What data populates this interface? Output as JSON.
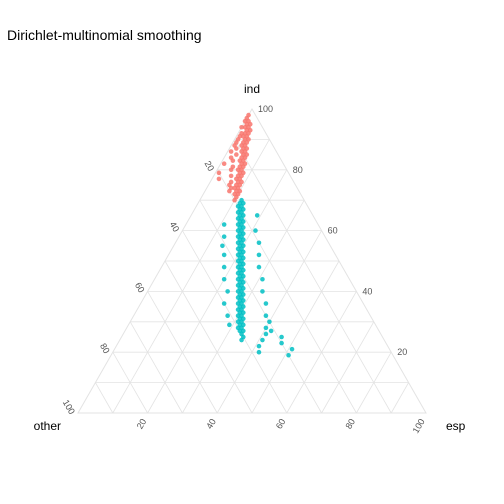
{
  "title": "Dirichlet-multinomial smoothing",
  "chart_data": {
    "type": "scatter",
    "subtype": "ternary",
    "title": "Dirichlet-multinomial smoothing",
    "vertices": {
      "top": "ind",
      "left": "other",
      "right": "esp"
    },
    "ind_ticks": [
      "20",
      "40",
      "60",
      "80",
      "100"
    ],
    "other_ticks": [
      "20",
      "40",
      "60",
      "80",
      "100"
    ],
    "esp_ticks": [
      "20",
      "40",
      "60",
      "80",
      "100"
    ],
    "grid": true,
    "legend": "none",
    "series": [
      {
        "color": "#f8766d",
        "points": [
          [
            98,
            2,
            0
          ],
          [
            97,
            3,
            0
          ],
          [
            96,
            3,
            1
          ],
          [
            95,
            4,
            1
          ],
          [
            95,
            3,
            2
          ],
          [
            94,
            4,
            2
          ],
          [
            94,
            5,
            1
          ],
          [
            93,
            5,
            2
          ],
          [
            93,
            4,
            3
          ],
          [
            92,
            6,
            2
          ],
          [
            92,
            5,
            3
          ],
          [
            91,
            6,
            3
          ],
          [
            91,
            7,
            2
          ],
          [
            90,
            7,
            3
          ],
          [
            90,
            6,
            4
          ],
          [
            89,
            8,
            3
          ],
          [
            89,
            7,
            4
          ],
          [
            88,
            8,
            4
          ],
          [
            88,
            9,
            3
          ],
          [
            87,
            9,
            4
          ],
          [
            87,
            8,
            5
          ],
          [
            86,
            9,
            5
          ],
          [
            86,
            10,
            4
          ],
          [
            85,
            10,
            5
          ],
          [
            85,
            9,
            6
          ],
          [
            84,
            11,
            5
          ],
          [
            84,
            10,
            6
          ],
          [
            83,
            11,
            6
          ],
          [
            83,
            12,
            5
          ],
          [
            82,
            12,
            6
          ],
          [
            82,
            11,
            7
          ],
          [
            81,
            13,
            6
          ],
          [
            81,
            12,
            7
          ],
          [
            80,
            13,
            7
          ],
          [
            80,
            14,
            6
          ],
          [
            79,
            14,
            7
          ],
          [
            79,
            13,
            8
          ],
          [
            78,
            15,
            7
          ],
          [
            78,
            14,
            8
          ],
          [
            77,
            15,
            8
          ],
          [
            77,
            16,
            7
          ],
          [
            76,
            16,
            8
          ],
          [
            76,
            15,
            9
          ],
          [
            75,
            17,
            8
          ],
          [
            75,
            16,
            9
          ],
          [
            74,
            17,
            9
          ],
          [
            74,
            18,
            8
          ],
          [
            73,
            18,
            9
          ],
          [
            73,
            17,
            10
          ],
          [
            72,
            19,
            9
          ],
          [
            72,
            18,
            10
          ],
          [
            71,
            19,
            10
          ],
          [
            70,
            20,
            10
          ],
          [
            86,
            13,
            1
          ],
          [
            82,
            17,
            1
          ],
          [
            79,
            20,
            1
          ],
          [
            88,
            11,
            1
          ],
          [
            84,
            14,
            2
          ],
          [
            77,
            21,
            2
          ],
          [
            94,
            6,
            0
          ],
          [
            90,
            9,
            1
          ],
          [
            96,
            4,
            0
          ],
          [
            91,
            8,
            1
          ],
          [
            89,
            10,
            1
          ],
          [
            85,
            12,
            3
          ],
          [
            83,
            14,
            3
          ],
          [
            80,
            16,
            4
          ],
          [
            78,
            17,
            5
          ],
          [
            76,
            18,
            6
          ],
          [
            74,
            19,
            7
          ],
          [
            92,
            7,
            1
          ],
          [
            87,
            11,
            2
          ],
          [
            81,
            15,
            4
          ],
          [
            75,
            19,
            6
          ],
          [
            73,
            20,
            7
          ]
        ]
      },
      {
        "color": "#00bfc4",
        "points": [
          [
            70,
            18,
            12
          ],
          [
            69,
            19,
            12
          ],
          [
            69,
            18,
            13
          ],
          [
            68,
            20,
            12
          ],
          [
            68,
            19,
            13
          ],
          [
            67,
            20,
            13
          ],
          [
            67,
            19,
            14
          ],
          [
            66,
            21,
            13
          ],
          [
            66,
            20,
            14
          ],
          [
            65,
            21,
            14
          ],
          [
            65,
            20,
            15
          ],
          [
            64,
            22,
            14
          ],
          [
            64,
            21,
            15
          ],
          [
            63,
            22,
            15
          ],
          [
            63,
            21,
            16
          ],
          [
            62,
            23,
            15
          ],
          [
            62,
            22,
            16
          ],
          [
            61,
            23,
            16
          ],
          [
            61,
            22,
            17
          ],
          [
            60,
            24,
            16
          ],
          [
            60,
            23,
            17
          ],
          [
            59,
            24,
            17
          ],
          [
            59,
            23,
            18
          ],
          [
            58,
            25,
            17
          ],
          [
            58,
            24,
            18
          ],
          [
            57,
            25,
            18
          ],
          [
            57,
            24,
            19
          ],
          [
            56,
            26,
            18
          ],
          [
            56,
            25,
            19
          ],
          [
            55,
            26,
            19
          ],
          [
            55,
            25,
            20
          ],
          [
            54,
            27,
            19
          ],
          [
            54,
            26,
            20
          ],
          [
            53,
            27,
            20
          ],
          [
            53,
            26,
            21
          ],
          [
            52,
            28,
            20
          ],
          [
            52,
            27,
            21
          ],
          [
            51,
            28,
            21
          ],
          [
            51,
            27,
            22
          ],
          [
            50,
            29,
            21
          ],
          [
            50,
            28,
            22
          ],
          [
            49,
            29,
            22
          ],
          [
            49,
            28,
            23
          ],
          [
            48,
            30,
            22
          ],
          [
            48,
            29,
            23
          ],
          [
            47,
            30,
            23
          ],
          [
            47,
            29,
            24
          ],
          [
            46,
            31,
            23
          ],
          [
            46,
            30,
            24
          ],
          [
            45,
            31,
            24
          ],
          [
            45,
            30,
            25
          ],
          [
            44,
            32,
            24
          ],
          [
            44,
            31,
            25
          ],
          [
            43,
            32,
            25
          ],
          [
            43,
            31,
            26
          ],
          [
            42,
            33,
            25
          ],
          [
            42,
            32,
            26
          ],
          [
            41,
            33,
            26
          ],
          [
            41,
            32,
            27
          ],
          [
            40,
            34,
            26
          ],
          [
            40,
            33,
            27
          ],
          [
            39,
            34,
            27
          ],
          [
            39,
            33,
            28
          ],
          [
            38,
            35,
            27
          ],
          [
            38,
            34,
            28
          ],
          [
            37,
            35,
            28
          ],
          [
            37,
            34,
            29
          ],
          [
            36,
            36,
            28
          ],
          [
            36,
            35,
            29
          ],
          [
            35,
            36,
            29
          ],
          [
            35,
            35,
            30
          ],
          [
            34,
            37,
            29
          ],
          [
            34,
            36,
            30
          ],
          [
            33,
            37,
            30
          ],
          [
            33,
            36,
            31
          ],
          [
            32,
            38,
            30
          ],
          [
            32,
            37,
            31
          ],
          [
            31,
            38,
            31
          ],
          [
            31,
            37,
            32
          ],
          [
            30,
            39,
            31
          ],
          [
            30,
            38,
            32
          ],
          [
            29,
            39,
            32
          ],
          [
            29,
            38,
            33
          ],
          [
            28,
            40,
            32
          ],
          [
            28,
            39,
            33
          ],
          [
            27,
            40,
            33
          ],
          [
            27,
            39,
            34
          ],
          [
            26,
            40,
            34
          ],
          [
            25,
            40,
            35
          ],
          [
            24,
            41,
            35
          ],
          [
            62,
            27,
            11
          ],
          [
            58,
            29,
            13
          ],
          [
            55,
            31,
            14
          ],
          [
            52,
            32,
            16
          ],
          [
            48,
            34,
            18
          ],
          [
            44,
            36,
            20
          ],
          [
            40,
            37,
            23
          ],
          [
            36,
            40,
            24
          ],
          [
            32,
            41,
            27
          ],
          [
            29,
            42,
            29
          ],
          [
            65,
            16,
            19
          ],
          [
            60,
            19,
            21
          ],
          [
            56,
            20,
            24
          ],
          [
            52,
            22,
            26
          ],
          [
            48,
            24,
            28
          ],
          [
            44,
            25,
            31
          ],
          [
            40,
            27,
            33
          ],
          [
            36,
            28,
            36
          ],
          [
            32,
            30,
            38
          ],
          [
            28,
            32,
            40
          ],
          [
            26,
            33,
            41
          ],
          [
            24,
            35,
            41
          ],
          [
            22,
            37,
            41
          ],
          [
            20,
            38,
            42
          ],
          [
            19,
            30,
            51
          ],
          [
            21,
            28,
            51
          ],
          [
            23,
            30,
            47
          ],
          [
            25,
            29,
            46
          ],
          [
            27,
            31,
            42
          ],
          [
            30,
            30,
            40
          ]
        ]
      }
    ]
  }
}
